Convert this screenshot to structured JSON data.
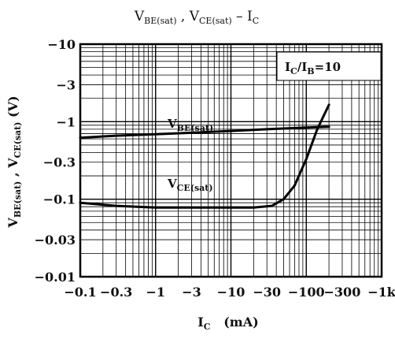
{
  "chart_data": {
    "type": "line",
    "title": {
      "parts": [
        {
          "main": "V",
          "sub": "BE(sat)"
        },
        {
          "main": " , V",
          "sub": "CE(sat)"
        },
        {
          "main": " – I",
          "sub": "C"
        }
      ]
    },
    "xlabel": {
      "main": "I",
      "sub": "C",
      "rest": "   (mA)"
    },
    "ylabel": {
      "parts": [
        {
          "main": "V",
          "sub": "BE(sat)"
        },
        {
          "main": " , V",
          "sub": "CE(sat)"
        },
        {
          "main": " (V)",
          "sub": ""
        }
      ]
    },
    "x_scale": "log",
    "y_scale": "log",
    "xlim": [
      0.1,
      1000
    ],
    "ylim": [
      0.01,
      10
    ],
    "grid": true,
    "x_ticks": [
      {
        "value": 0.1,
        "label": "−0.1"
      },
      {
        "value": 0.3,
        "label": "−0.3"
      },
      {
        "value": 1,
        "label": "−1"
      },
      {
        "value": 3,
        "label": "−3"
      },
      {
        "value": 10,
        "label": "−10"
      },
      {
        "value": 30,
        "label": "−30"
      },
      {
        "value": 100,
        "label": "−100"
      },
      {
        "value": 300,
        "label": "−300"
      },
      {
        "value": 1000,
        "label": "−1k"
      }
    ],
    "y_ticks": [
      {
        "value": 10,
        "label": "−10"
      },
      {
        "value": 3,
        "label": "−3"
      },
      {
        "value": 1,
        "label": "−1"
      },
      {
        "value": 0.3,
        "label": "−0.3"
      },
      {
        "value": 0.1,
        "label": "−0.1"
      },
      {
        "value": 0.03,
        "label": "−0.03"
      },
      {
        "value": 0.01,
        "label": "−0.01"
      }
    ],
    "annotation": {
      "main": "I",
      "sub": "C",
      "mid": "/I",
      "sub2": "B",
      "rest": "=10"
    },
    "series": [
      {
        "name": "V_BE(sat)",
        "label_main": "V",
        "label_sub": "BE(sat)",
        "x": [
          0.1,
          0.3,
          1,
          3,
          10,
          30,
          100,
          200
        ],
        "y": [
          0.62,
          0.66,
          0.69,
          0.72,
          0.76,
          0.8,
          0.84,
          0.86
        ]
      },
      {
        "name": "V_CE(sat)",
        "label_main": "V",
        "label_sub": "CE(sat)",
        "x": [
          0.1,
          0.3,
          1,
          3,
          10,
          20,
          35,
          50,
          70,
          100,
          140,
          200
        ],
        "y": [
          0.09,
          0.082,
          0.078,
          0.078,
          0.078,
          0.078,
          0.082,
          0.1,
          0.15,
          0.33,
          0.8,
          1.65
        ]
      }
    ]
  }
}
